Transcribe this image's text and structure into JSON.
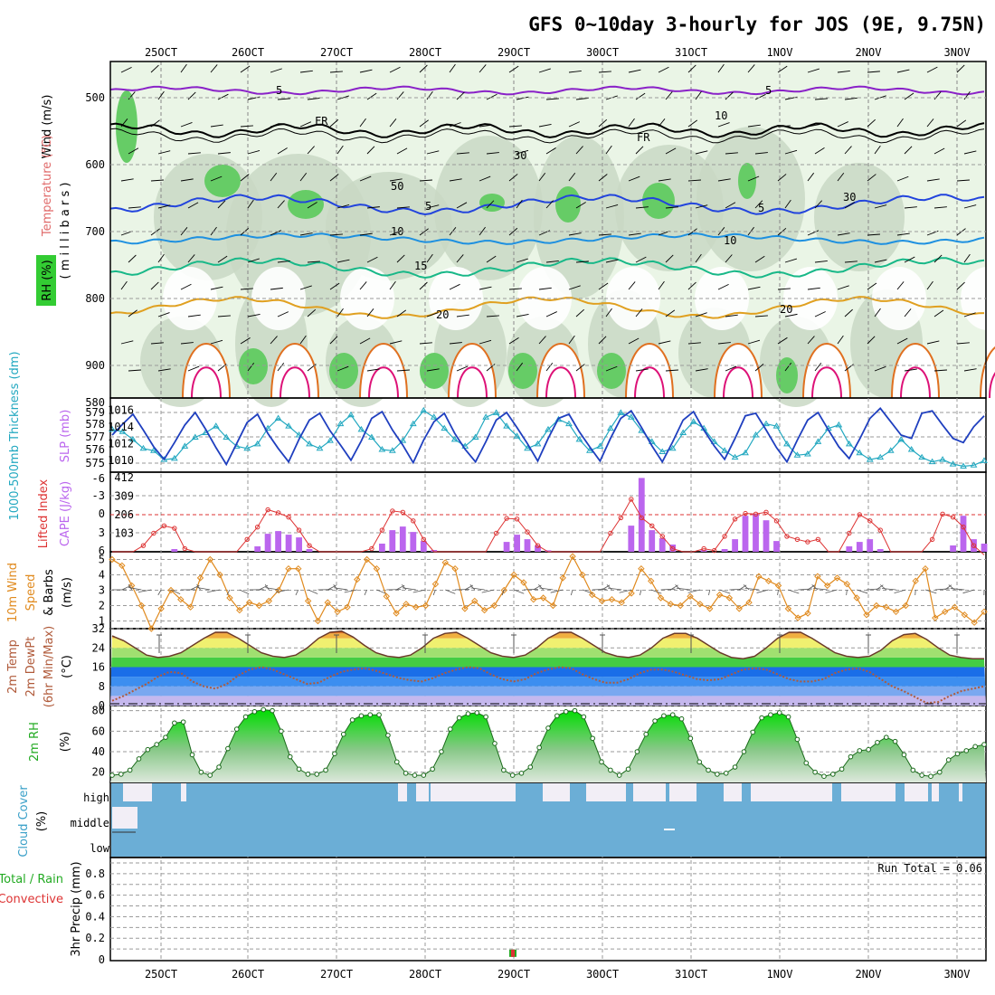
{
  "title": "GFS 0~10day 3-hourly for JOS (9E, 9.75N)",
  "dates": [
    "25OCT",
    "26OCT",
    "27OCT",
    "28OCT",
    "29OCT",
    "30OCT",
    "31OCT",
    "1NOV",
    "2NOV",
    "3NOV"
  ],
  "colors": {
    "grid": "#9a9a9a",
    "cloud": "#6baed6",
    "rh": "#22bb22",
    "cape": "#bb66ee",
    "li": "#dd3333",
    "wind": "#e08a1e",
    "slp": "#1f3fbf",
    "thick": "#22a8c0",
    "dew": "#b05a3a"
  },
  "panels": {
    "upper": {
      "ylabel_wind": "Wind (m/s)",
      "ylabel_temp": "Temperature (°C)",
      "ylabel_rh": "RH (%)",
      "ylabel_p": "( m i l l i b a r s )",
      "yticks": [
        "500",
        "600",
        "700",
        "800",
        "900"
      ],
      "contour_labels": [
        "5",
        "5",
        "FR",
        "FR",
        "5",
        "5",
        "10",
        "10",
        "15",
        "20",
        "20",
        "10",
        "30",
        "30",
        "50"
      ]
    },
    "thickness": {
      "ylabel_left": "1000-500mb Thickness (dm)",
      "ylabel_right": "SLP (mb)",
      "left_ticks": [
        "580",
        "579",
        "578",
        "577",
        "576",
        "575"
      ],
      "right_ticks": [
        "1016",
        "1014",
        "1012",
        "1010"
      ]
    },
    "cape": {
      "ylabel_left": "Lifted Index",
      "ylabel_right": "CAPE (J/kg)",
      "left_ticks": [
        "-6",
        "-3",
        "0",
        "3",
        "6"
      ],
      "right_ticks": [
        "412",
        "309",
        "206",
        "103"
      ]
    },
    "wind10": {
      "ylabel_1": "10m Wind",
      "ylabel_2": "Speed",
      "ylabel_3": "& Barbs",
      "ylabel_4": "(m/s)",
      "yticks": [
        "5",
        "4",
        "3",
        "2",
        "1"
      ]
    },
    "temp2m": {
      "ylabel_1": "2m Temp",
      "ylabel_2": "2m DewPt",
      "ylabel_3": "(6hr Min/Max)",
      "ylabel_4": "(°C)",
      "yticks": [
        "32",
        "24",
        "16",
        "8",
        "0"
      ]
    },
    "rh2m": {
      "ylabel": "2m RH",
      "unit": "(%)",
      "yticks": [
        "80",
        "60",
        "40",
        "20"
      ]
    },
    "cloud": {
      "ylabel": "Cloud Cover",
      "unit": "(%)",
      "levels": [
        "high",
        "middle",
        "low"
      ]
    },
    "precip": {
      "ylabel_1": "Total / Rain",
      "ylabel_2": "Convective",
      "ylabel_3": "3hr Precip (mm)",
      "run_total": "Run Total = 0.06",
      "yticks": [
        "0.8",
        "0.6",
        "0.4",
        "0.2",
        "0"
      ]
    }
  },
  "chart_data": [
    {
      "type": "line",
      "name": "1000-500mb Thickness (dm)",
      "ylim": [
        574,
        580
      ],
      "values": [
        577.5,
        577.3,
        576.6,
        575.8,
        575.6,
        574.8,
        574.9,
        576.0,
        576.8,
        577.2,
        577.8,
        576.8,
        576.0,
        575.8,
        576.2,
        577.6,
        578.5,
        577.8,
        577.0,
        576.2,
        575.8,
        576.5,
        578.0,
        578.8,
        577.5,
        576.8,
        575.7,
        575.6,
        576.5,
        578.0,
        579.2,
        578.6,
        577.6,
        576.6,
        576.0,
        576.8,
        578.6,
        579.0,
        577.8,
        576.9,
        575.8,
        576.2,
        577.5,
        578.4,
        578.0,
        576.6,
        575.6,
        576.0,
        577.6,
        579.0,
        578.6,
        577.4,
        576.4,
        575.5,
        575.8,
        577.2,
        578.2,
        577.6,
        576.4,
        575.6,
        575.0,
        575.4,
        577.0,
        578.0,
        577.8,
        576.2,
        575.2,
        575.3,
        576.4,
        577.6,
        577.9,
        576.2,
        575.4,
        574.8,
        575.0,
        575.6,
        576.6,
        575.7,
        575.0,
        574.6,
        574.8,
        574.4,
        574.2,
        574.3,
        574.7
      ]
    },
    {
      "type": "line",
      "name": "SLP (mb)",
      "ylim": [
        1009,
        1017
      ],
      "values": [
        1013,
        1014.3,
        1015.5,
        1013.6,
        1011.6,
        1010.1,
        1012.1,
        1014.2,
        1015.7,
        1013.7,
        1011.5,
        1009.5,
        1012.0,
        1014.5,
        1015.5,
        1013.2,
        1011.4,
        1009.8,
        1012.5,
        1014.8,
        1015.6,
        1013.5,
        1011.8,
        1010.0,
        1012.3,
        1015.0,
        1015.8,
        1013.6,
        1011.8,
        1009.7,
        1012.4,
        1014.6,
        1015.6,
        1013.2,
        1011.3,
        1009.8,
        1012.2,
        1014.8,
        1015.7,
        1013.9,
        1012.0,
        1009.9,
        1012.6,
        1015.0,
        1015.5,
        1013.4,
        1011.6,
        1009.9,
        1012.6,
        1015.0,
        1015.9,
        1013.9,
        1011.7,
        1009.8,
        1012.2,
        1014.8,
        1015.8,
        1013.6,
        1011.7,
        1010.1,
        1012.6,
        1015.3,
        1015.6,
        1013.6,
        1011.5,
        1009.8,
        1012.4,
        1014.8,
        1015.7,
        1013.6,
        1011.6,
        1010.2,
        1012.5,
        1015.0,
        1016.2,
        1014.6,
        1013.0,
        1012.6,
        1015.6,
        1015.9,
        1014.2,
        1012.6,
        1012.1,
        1014.0,
        1015.3
      ]
    },
    {
      "type": "bar",
      "name": "CAPE (J/kg)",
      "ylim": [
        0,
        412
      ],
      "values": [
        0,
        0,
        0,
        0,
        0,
        0,
        15,
        0,
        0,
        0,
        0,
        0,
        0,
        0,
        30,
        100,
        115,
        95,
        80,
        15,
        0,
        0,
        0,
        0,
        0,
        0,
        45,
        120,
        140,
        110,
        60,
        10,
        0,
        0,
        0,
        0,
        0,
        0,
        55,
        95,
        70,
        35,
        8,
        0,
        0,
        0,
        0,
        0,
        0,
        0,
        145,
        410,
        120,
        75,
        40,
        0,
        0,
        10,
        0,
        15,
        70,
        200,
        210,
        175,
        60,
        0,
        0,
        0,
        0,
        0,
        0,
        30,
        55,
        70,
        15,
        0,
        0,
        0,
        0,
        0,
        0,
        35,
        200,
        70,
        45
      ]
    },
    {
      "type": "line",
      "name": "Lifted Index",
      "ylim": [
        -6,
        6
      ],
      "values": [
        6,
        6,
        6,
        5,
        3,
        1.8,
        2.2,
        5.5,
        6,
        6,
        6,
        6,
        6,
        4,
        2,
        -0.8,
        -0.3,
        0.4,
        2.5,
        5,
        6,
        6,
        6,
        6,
        6,
        5.5,
        2.5,
        -0.6,
        -0.4,
        1,
        4,
        6,
        6,
        6,
        6,
        6,
        6,
        3,
        0.6,
        0.7,
        2.8,
        5,
        6,
        6,
        6,
        6,
        6,
        6,
        3,
        0.5,
        -2.5,
        0.5,
        1.8,
        3.5,
        5.5,
        6,
        6,
        5.5,
        5.8,
        3.5,
        0.7,
        -0.2,
        -0.1,
        -0.4,
        1,
        3.5,
        4,
        4.4,
        4,
        6,
        6,
        3,
        0,
        1,
        2.5,
        6,
        6,
        6,
        6,
        4,
        -0.1,
        0.4,
        2,
        5,
        6.5
      ]
    },
    {
      "type": "line",
      "name": "10m Wind Speed (m/s)",
      "ylim": [
        0.5,
        5.5
      ],
      "values": [
        5.0,
        4.6,
        3.3,
        2.0,
        0.5,
        1.8,
        3.0,
        2.4,
        1.9,
        3.8,
        5.0,
        4.0,
        2.5,
        1.7,
        2.2,
        2.0,
        2.3,
        3.0,
        4.4,
        4.4,
        2.3,
        1.0,
        2.2,
        1.6,
        1.9,
        3.7,
        5.0,
        4.4,
        2.6,
        1.5,
        2.1,
        1.9,
        2.0,
        3.4,
        4.8,
        4.4,
        1.8,
        2.3,
        1.7,
        2.0,
        3.0,
        4.0,
        3.5,
        2.4,
        2.5,
        2.0,
        3.8,
        5.2,
        4.0,
        2.7,
        2.3,
        2.4,
        2.2,
        2.8,
        4.4,
        3.6,
        2.5,
        2.1,
        2.0,
        2.6,
        2.1,
        1.8,
        2.7,
        2.5,
        1.8,
        2.2,
        3.9,
        3.6,
        3.3,
        1.8,
        1.2,
        1.5,
        3.9,
        3.3,
        3.8,
        3.4,
        2.5,
        1.4,
        2.0,
        1.9,
        1.6,
        2.0,
        3.6,
        4.4,
        1.2,
        1.6,
        1.9,
        1.4,
        0.9,
        1.6
      ]
    },
    {
      "type": "line",
      "name": "2m Temp (°C)",
      "ylim": [
        0,
        32
      ],
      "values": [
        29,
        27,
        24,
        21,
        20,
        20.5,
        22,
        25,
        28,
        30.5,
        30.5,
        28,
        25,
        22,
        20.5,
        20,
        21,
        24,
        28,
        30.5,
        31,
        28.5,
        25,
        22,
        20.5,
        20,
        21,
        24,
        28,
        30,
        30.5,
        28,
        25,
        22,
        20.5,
        20,
        21,
        24,
        28,
        30.5,
        30.5,
        28,
        25,
        22,
        20.5,
        20,
        21,
        24,
        28,
        30,
        30,
        28,
        25,
        22,
        20,
        19.5,
        20.5,
        24,
        28,
        30.5,
        30.5,
        28,
        25,
        22,
        20.5,
        20,
        20.5,
        23,
        27,
        29.5,
        30,
        27.5,
        24,
        21,
        20,
        19.5,
        19.5
      ]
    },
    {
      "type": "line",
      "name": "2m DewPt (°C)",
      "ylim": [
        0,
        32
      ],
      "values": [
        2,
        4,
        6.5,
        9,
        12,
        14,
        13.5,
        10,
        8,
        7,
        9,
        12.5,
        15,
        16,
        15,
        13,
        11,
        9,
        9.5,
        12,
        14,
        15,
        15.5,
        14.5,
        13,
        11.5,
        10.5,
        10,
        11.5,
        13.5,
        15,
        16,
        15.5,
        13,
        11,
        10,
        11,
        13.5,
        15,
        16,
        15.5,
        13,
        11,
        9.5,
        9.5,
        11,
        13.5,
        15,
        15,
        14,
        12.5,
        11,
        10.5,
        11,
        13,
        15,
        15.5,
        15,
        13,
        11,
        10,
        10,
        11,
        13.5,
        15,
        15.5,
        14,
        11,
        8,
        6,
        3.5,
        1,
        1.5,
        4,
        6,
        7,
        8
      ]
    },
    {
      "type": "line",
      "name": "2m RH (%)",
      "ylim": [
        10,
        85
      ],
      "values": [
        17,
        18,
        22,
        33,
        42,
        47,
        54,
        68,
        69,
        37,
        20,
        17,
        25,
        43,
        62,
        74,
        79,
        81,
        80,
        60,
        35,
        23,
        18,
        18,
        22,
        38,
        57,
        71,
        75,
        76,
        76,
        56,
        30,
        19,
        17,
        17,
        23,
        40,
        62,
        73,
        77,
        78,
        74,
        48,
        22,
        17,
        19,
        25,
        44,
        63,
        75,
        79,
        80,
        74,
        53,
        30,
        22,
        17,
        23,
        40,
        57,
        70,
        75,
        76,
        72,
        53,
        30,
        22,
        18,
        19,
        25,
        40,
        59,
        73,
        76,
        78,
        74,
        52,
        29,
        20,
        16,
        18,
        23,
        35,
        41,
        42,
        49,
        54,
        50,
        37,
        22,
        17,
        16,
        20,
        32,
        38,
        41,
        45,
        47
      ]
    },
    {
      "type": "bar",
      "name": "3hr Precip (mm)",
      "ylim": [
        0,
        0.9
      ],
      "values": [
        0,
        0,
        0,
        0,
        0,
        0,
        0,
        0,
        0,
        0,
        0,
        0,
        0,
        0,
        0,
        0,
        0,
        0,
        0,
        0,
        0,
        0,
        0,
        0,
        0,
        0,
        0,
        0,
        0,
        0,
        0,
        0,
        0,
        0,
        0,
        0,
        0,
        0,
        0,
        0,
        0,
        0.06,
        0,
        0,
        0,
        0,
        0,
        0,
        0,
        0,
        0,
        0,
        0,
        0,
        0,
        0,
        0,
        0,
        0,
        0,
        0,
        0,
        0,
        0,
        0,
        0,
        0,
        0,
        0,
        0,
        0,
        0,
        0,
        0,
        0,
        0,
        0,
        0,
        0,
        0,
        0,
        0
      ]
    }
  ]
}
